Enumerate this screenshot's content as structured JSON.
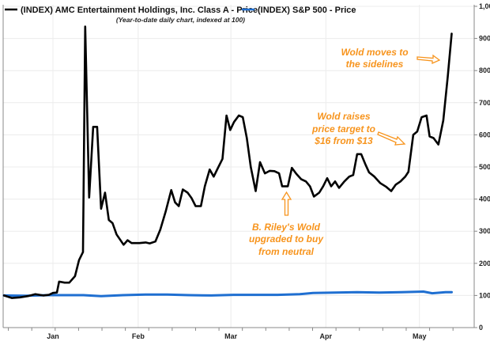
{
  "chart_data": {
    "type": "line",
    "title": "",
    "subtitle": "(Year-to-date daily chart, indexed at 100)",
    "xlabel": "",
    "ylabel": "",
    "x_unit": "trading days from start",
    "xlim": [
      0,
      106.5
    ],
    "ylim": [
      0,
      1000
    ],
    "y_axis_side": "right",
    "yticks": [
      0,
      100,
      200,
      300,
      400,
      500,
      600,
      700,
      800,
      900,
      1000
    ],
    "ytick_labels": [
      "0",
      "100",
      "200",
      "300",
      "400",
      "500",
      "600",
      "700",
      "800",
      "900",
      "1,000"
    ],
    "xticks": [
      {
        "label": "Jan",
        "day": 11.1
      },
      {
        "label": "Feb",
        "day": 30.4
      },
      {
        "label": "Mar",
        "day": 51.4
      },
      {
        "label": "Apr",
        "day": 72.9
      },
      {
        "label": "May",
        "day": 94.1
      }
    ],
    "grid": true,
    "legend_position": "top-left",
    "series": [
      {
        "name": "(INDEX) AMC Entertainment Holdings, Inc. Class A - Price",
        "color": "#000000",
        "x": [
          0,
          1.8,
          3.6,
          5.4,
          7.1,
          8.9,
          10.2,
          11.1,
          12,
          12.5,
          13.75,
          14.8,
          16.1,
          17,
          17.9,
          18.4,
          19.3,
          20.2,
          21.1,
          22,
          22.9,
          23.75,
          24.6,
          25.5,
          27.1,
          28,
          28.9,
          30.7,
          32.1,
          33,
          34.3,
          35.4,
          36.6,
          37.9,
          38.75,
          39.6,
          40.5,
          41.6,
          42.5,
          43.4,
          44.6,
          45.5,
          46.6,
          47.5,
          48.4,
          49.5,
          50.4,
          51.25,
          52.1,
          53.2,
          54.1,
          55,
          55.9,
          57,
          58,
          59.1,
          60.2,
          61.25,
          62.3,
          63,
          64.3,
          65.2,
          66.25,
          67.3,
          68.4,
          69.3,
          70.2,
          71.4,
          72.3,
          73.2,
          74.1,
          75,
          75.9,
          77.1,
          78.2,
          79.1,
          80,
          80.9,
          81.8,
          82.7,
          83.9,
          85.2,
          86.6,
          87.7,
          88.75,
          89.8,
          90.9,
          91.6,
          92.7,
          93.6,
          94.6,
          95.7,
          96.4,
          97.3,
          98.4,
          99.5,
          100.5,
          101.4
        ],
        "values": [
          100,
          92,
          94,
          98,
          104,
          100,
          102,
          108,
          109,
          143,
          140,
          140,
          160,
          210,
          235,
          937,
          405,
          625,
          625,
          370,
          420,
          335,
          325,
          290,
          258,
          272,
          263,
          263,
          265,
          262,
          268,
          305,
          360,
          428,
          390,
          378,
          430,
          420,
          403,
          378,
          378,
          440,
          492,
          470,
          495,
          525,
          660,
          615,
          640,
          660,
          655,
          590,
          500,
          425,
          515,
          480,
          488,
          487,
          480,
          440,
          440,
          497,
          478,
          462,
          455,
          440,
          408,
          420,
          440,
          465,
          440,
          455,
          435,
          455,
          470,
          475,
          540,
          540,
          510,
          483,
          470,
          450,
          438,
          425,
          445,
          455,
          470,
          485,
          600,
          610,
          655,
          660,
          595,
          590,
          570,
          645,
          780,
          915
        ]
      },
      {
        "name": "(INDEX) S&P 500 - Price",
        "color": "#1F6FD1",
        "x": [
          0,
          5,
          10,
          15,
          18,
          22,
          27,
          32,
          37,
          42,
          47,
          52,
          57,
          62,
          67,
          70,
          75,
          80,
          85,
          90,
          95,
          97,
          100,
          101.4
        ],
        "values": [
          100,
          99,
          101,
          101,
          101,
          98,
          101,
          103,
          103,
          101,
          100,
          102,
          102,
          102,
          104,
          108,
          109,
          110,
          109,
          110,
          112,
          107,
          110,
          110
        ]
      }
    ],
    "annotations": [
      {
        "lines": [
          "Wold moves to",
          "the sidelines"
        ],
        "points_to_day": 101,
        "points_to_value": 830
      },
      {
        "lines": [
          "Wold raises",
          "price target to",
          "$16 from $13"
        ],
        "points_to_day": 90,
        "points_to_value": 570
      },
      {
        "lines": [
          "B. Riley's Wold",
          "upgraded to buy",
          "from neutral"
        ],
        "points_to_day": 63.6,
        "points_to_value": 425
      }
    ],
    "annotation_color": "#F7941D"
  }
}
